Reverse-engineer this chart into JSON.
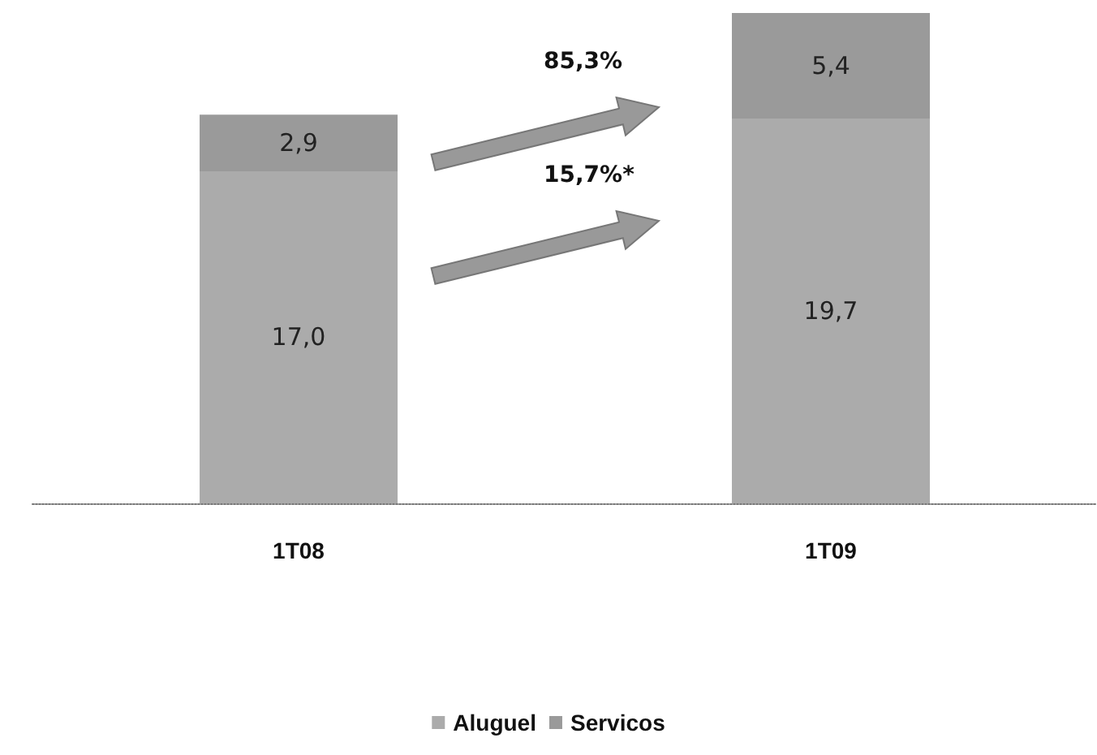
{
  "chart_data": {
    "type": "bar",
    "stacked": true,
    "categories": [
      "1T08",
      "1T09"
    ],
    "series": [
      {
        "name": "Aluguel",
        "color": "#ababab",
        "values": [
          17.0,
          19.7
        ],
        "value_labels": [
          "17,0",
          "19,7"
        ]
      },
      {
        "name": "Servicos",
        "color": "#9a9a9a",
        "values": [
          2.9,
          5.4
        ],
        "value_labels": [
          "2,9",
          "5,4"
        ]
      }
    ],
    "annotations": [
      "85,3%",
      "15,7%*"
    ],
    "legend": "bottom"
  }
}
